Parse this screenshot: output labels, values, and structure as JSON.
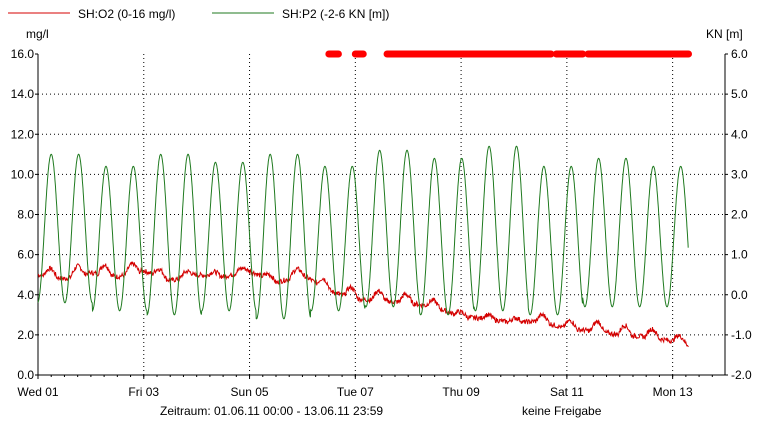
{
  "chart_data": {
    "type": "line",
    "legend": {
      "placement": "top-left",
      "items": [
        {
          "label": "SH:O2 (0-16 mg/l)",
          "color": "#d40000"
        },
        {
          "label": "SH:P2 (-2-6 KN [m])",
          "color": "#1f7a1f"
        }
      ]
    },
    "left_axis": {
      "unit": "mg/l",
      "min": 0,
      "max": 16,
      "ticks": [
        "0.0",
        "2.0",
        "4.0",
        "6.0",
        "8.0",
        "10.0",
        "12.0",
        "14.0",
        "16.0"
      ]
    },
    "right_axis": {
      "unit": "KN [m]",
      "min": -2,
      "max": 6,
      "ticks": [
        "-2.0",
        "-1.0",
        "0.0",
        "1.0",
        "2.0",
        "3.0",
        "4.0",
        "5.0",
        "6.0"
      ]
    },
    "x_axis": {
      "start_day": 0,
      "end_day": 12.99,
      "tick_days": [
        0,
        2,
        4,
        6,
        8,
        10,
        12
      ],
      "tick_labels": [
        "Wed 01",
        "Fri 03",
        "Sun 05",
        "Tue 07",
        "Thu 09",
        "Sat 11",
        "Mon 13"
      ]
    },
    "footer": {
      "period": "Zeitraum: 01.06.11 00:00 - 13.06.11 23:59",
      "status": "keine Freigabe"
    },
    "grid": true,
    "series": [
      {
        "name": "SH:O2 (0-16 mg/l)",
        "axis": "left",
        "color": "#d40000",
        "x_days": [
          0,
          0.5,
          1,
          1.5,
          2,
          2.5,
          3,
          3.5,
          4,
          4.5,
          5,
          5.5,
          6,
          6.5,
          7,
          7.5,
          8,
          8.5,
          9,
          9.5,
          10,
          10.5,
          11,
          11.5,
          12,
          12.3
        ],
        "values": [
          5.0,
          4.8,
          5.1,
          4.9,
          5.2,
          4.7,
          5.0,
          4.9,
          5.2,
          4.6,
          5.0,
          4.2,
          3.8,
          3.7,
          3.6,
          3.4,
          2.9,
          2.8,
          2.6,
          2.7,
          2.3,
          2.2,
          2.0,
          1.9,
          1.7,
          1.5
        ]
      },
      {
        "name": "SH:P2 (-2-6 KN [m])",
        "axis": "right",
        "color": "#1f7a1f",
        "start_day": 0,
        "end_day": 12.3,
        "period_days": 0.5175,
        "phase_peak_day": 0.25,
        "peak_days": [
          0.25,
          1.28,
          2.31,
          3.34,
          4.37,
          5.4,
          6.43,
          7.46,
          8.49,
          9.52,
          10.55,
          11.58
        ],
        "peak_values": [
          3.5,
          3.2,
          3.5,
          3.3,
          3.5,
          3.2,
          3.6,
          3.4,
          3.7,
          3.2,
          3.4,
          3.2
        ],
        "trough_values": [
          -0.2,
          -0.4,
          -0.5,
          -0.4,
          -0.6,
          -0.4,
          -0.3,
          -0.5,
          -0.4,
          -0.5,
          -0.3,
          -0.3
        ],
        "end_value": 1.2
      }
    ],
    "event_markers": {
      "color": "#ff0000",
      "value_mg_l": 16.0,
      "ranges_days": [
        [
          5.5,
          5.68
        ],
        [
          6.0,
          6.15
        ],
        [
          6.6,
          8.9
        ],
        [
          8.9,
          9.7
        ],
        [
          9.8,
          10.3
        ],
        [
          10.4,
          12.3
        ]
      ]
    }
  }
}
